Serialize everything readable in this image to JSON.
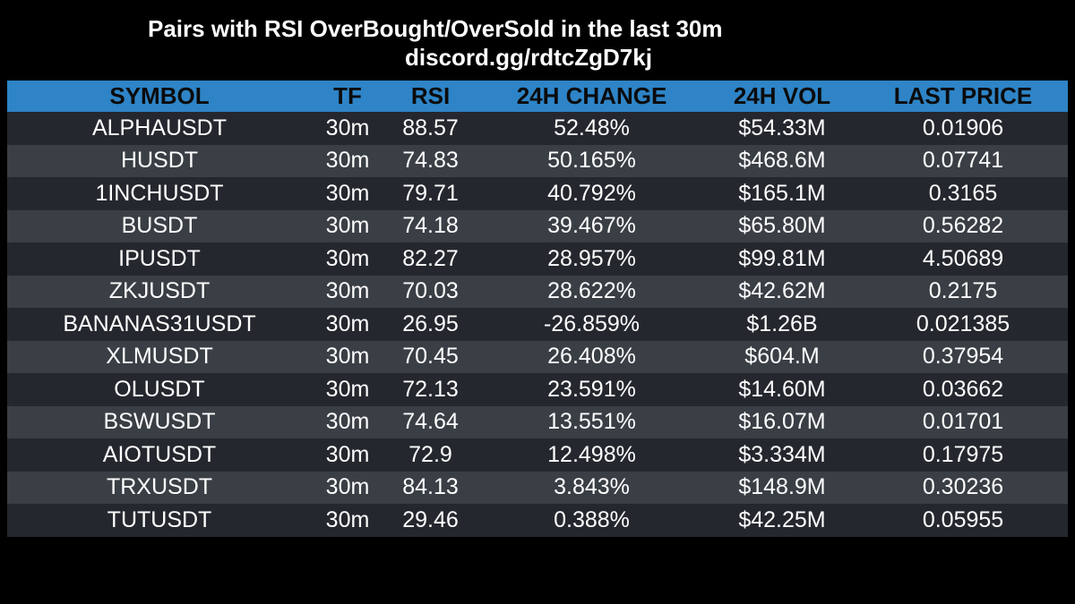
{
  "header": {
    "title": "Pairs with RSI OverBought/OverSold in the last 30m",
    "link": "discord.gg/rdtcZgD7kj"
  },
  "table": {
    "columns": [
      "SYMBOL",
      "TF",
      "RSI",
      "24H CHANGE",
      "24H VOL",
      "LAST PRICE"
    ],
    "rows": [
      [
        "ALPHAUSDT",
        "30m",
        "88.57",
        "52.48%",
        "$54.33M",
        "0.01906"
      ],
      [
        "HUSDT",
        "30m",
        "74.83",
        "50.165%",
        "$468.6M",
        "0.07741"
      ],
      [
        "1INCHUSDT",
        "30m",
        "79.71",
        "40.792%",
        "$165.1M",
        "0.3165"
      ],
      [
        "BUSDT",
        "30m",
        "74.18",
        "39.467%",
        "$65.80M",
        "0.56282"
      ],
      [
        "IPUSDT",
        "30m",
        "82.27",
        "28.957%",
        "$99.81M",
        "4.50689"
      ],
      [
        "ZKJUSDT",
        "30m",
        "70.03",
        "28.622%",
        "$42.62M",
        "0.2175"
      ],
      [
        "BANANAS31USDT",
        "30m",
        "26.95",
        "-26.859%",
        "$1.26B",
        "0.021385"
      ],
      [
        "XLMUSDT",
        "30m",
        "70.45",
        "26.408%",
        "$604.M",
        "0.37954"
      ],
      [
        "OLUSDT",
        "30m",
        "72.13",
        "23.591%",
        "$14.60M",
        "0.03662"
      ],
      [
        "BSWUSDT",
        "30m",
        "74.64",
        "13.551%",
        "$16.07M",
        "0.01701"
      ],
      [
        "AIOTUSDT",
        "30m",
        "72.9",
        "12.498%",
        "$3.334M",
        "0.17975"
      ],
      [
        "TRXUSDT",
        "30m",
        "84.13",
        "3.843%",
        "$148.9M",
        "0.30236"
      ],
      [
        "TUTUSDT",
        "30m",
        "29.46",
        "0.388%",
        "$42.25M",
        "0.05955"
      ]
    ]
  },
  "colors": {
    "background": "#000000",
    "header_bg": "#2e84c6",
    "row_dark": "#24282e",
    "row_light": "#3a3f45",
    "text": "#ffffff"
  }
}
